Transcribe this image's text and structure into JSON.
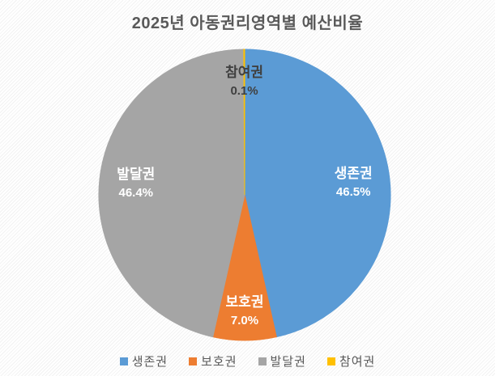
{
  "title": "2025년 아동권리영역별 예산비율",
  "chart_data": {
    "type": "pie",
    "title": "2025년 아동권리영역별 예산비율",
    "categories": [
      "생존권",
      "보호권",
      "발달권",
      "참여권"
    ],
    "values": [
      46.5,
      7.0,
      46.4,
      0.1
    ],
    "value_labels": [
      "46.5%",
      "7.0%",
      "46.4%",
      "0.1%"
    ],
    "colors": [
      "#5B9BD5",
      "#ED7D31",
      "#A5A5A5",
      "#FFC000"
    ],
    "label_text_colors": [
      "#FFFFFF",
      "#FFFFFF",
      "#FFFFFF",
      "#404040"
    ],
    "start_angle_deg": 0,
    "direction": "clockwise",
    "legend_position": "bottom",
    "legend": [
      "생존권",
      "보호권",
      "발달권",
      "참여권"
    ],
    "title_color": "#595959",
    "legend_text_color": "#595959"
  }
}
